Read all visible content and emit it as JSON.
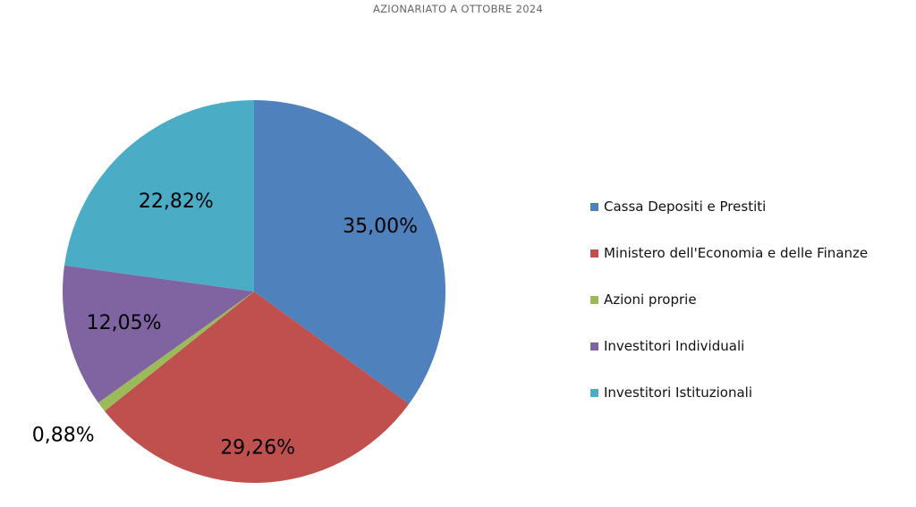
{
  "chart_data": {
    "type": "pie",
    "title": "AZIONARIATO A OTTOBRE 2024",
    "start_angle_deg": 0,
    "direction": "clockwise",
    "slices": [
      {
        "label": "Cassa Depositi e Prestiti",
        "value": 35.0,
        "value_label": "35,00%",
        "color": "#4F81BD"
      },
      {
        "label": "Ministero dell'Economia e delle Finanze",
        "value": 29.26,
        "value_label": "29,26%",
        "color": "#C0504D"
      },
      {
        "label": "Azioni proprie",
        "value": 0.88,
        "value_label": "0,88%",
        "color": "#9BBB59"
      },
      {
        "label": "Investitori Individuali",
        "value": 12.05,
        "value_label": "12,05%",
        "color": "#8064A2"
      },
      {
        "label": "Investitori Istituzionali",
        "value": 22.82,
        "value_label": "22,82%",
        "color": "#4BACC6"
      }
    ],
    "legend_position": "right"
  }
}
